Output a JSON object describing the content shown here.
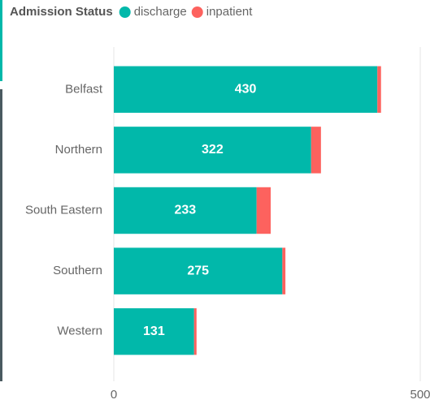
{
  "chart_data": {
    "type": "stacked_barh",
    "legend_title": "Admission Status",
    "categories": [
      "Belfast",
      "Northern",
      "South Eastern",
      "Southern",
      "Western"
    ],
    "series": [
      {
        "name": "discharge",
        "color": "#01B8AA",
        "values": [
          430,
          322,
          233,
          275,
          131
        ]
      },
      {
        "name": "inpatient",
        "color": "#FD625E",
        "values": [
          6,
          16,
          23,
          5,
          4
        ]
      }
    ],
    "data_labels_series": [
      0
    ],
    "xlim": [
      0,
      500
    ],
    "xticks": [
      0,
      500
    ],
    "grid": true,
    "legend": "top-left"
  }
}
